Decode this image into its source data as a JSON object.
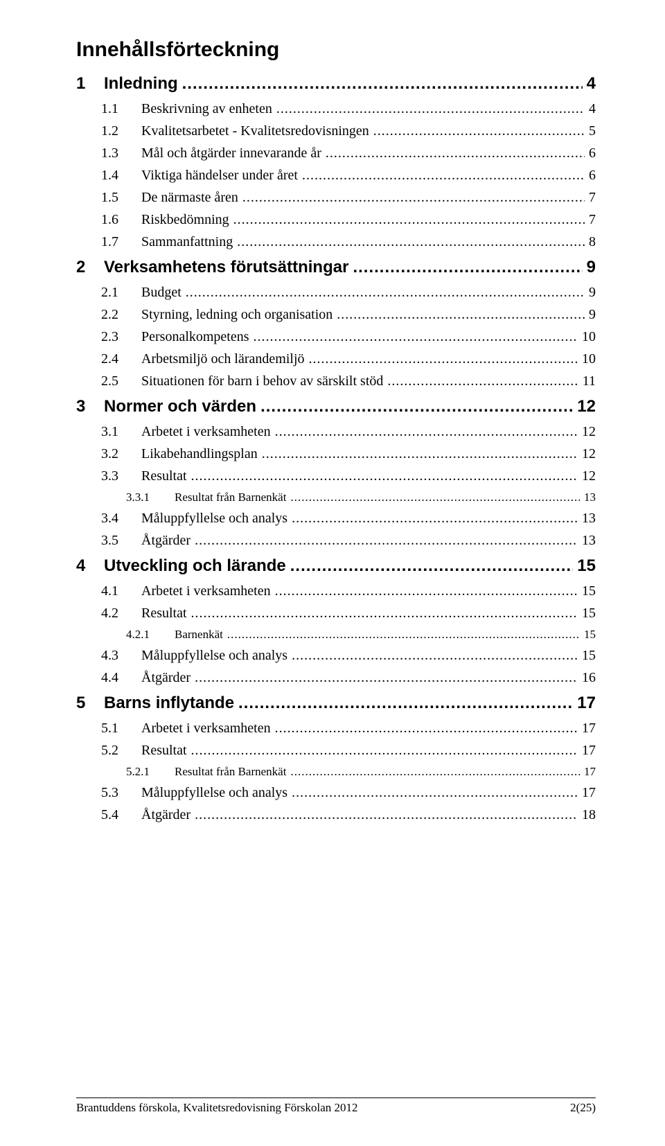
{
  "title": "Innehållsförteckning",
  "entries": [
    {
      "level": 1,
      "num": "1",
      "label": "Inledning",
      "page": "4"
    },
    {
      "level": 2,
      "num": "1.1",
      "label": "Beskrivning av enheten",
      "page": "4"
    },
    {
      "level": 2,
      "num": "1.2",
      "label": "Kvalitetsarbetet - Kvalitetsredovisningen",
      "page": "5"
    },
    {
      "level": 2,
      "num": "1.3",
      "label": "Mål och åtgärder innevarande år",
      "page": "6"
    },
    {
      "level": 2,
      "num": "1.4",
      "label": "Viktiga händelser under året",
      "page": "6"
    },
    {
      "level": 2,
      "num": "1.5",
      "label": "De närmaste åren",
      "page": "7"
    },
    {
      "level": 2,
      "num": "1.6",
      "label": "Riskbedömning",
      "page": "7"
    },
    {
      "level": 2,
      "num": "1.7",
      "label": "Sammanfattning",
      "page": "8"
    },
    {
      "level": 1,
      "num": "2",
      "label": "Verksamhetens förutsättningar",
      "page": "9"
    },
    {
      "level": 2,
      "num": "2.1",
      "label": "Budget",
      "page": "9"
    },
    {
      "level": 2,
      "num": "2.2",
      "label": "Styrning, ledning och organisation",
      "page": "9"
    },
    {
      "level": 2,
      "num": "2.3",
      "label": "Personalkompetens",
      "page": "10"
    },
    {
      "level": 2,
      "num": "2.4",
      "label": "Arbetsmiljö och lärandemiljö",
      "page": "10"
    },
    {
      "level": 2,
      "num": "2.5",
      "label": "Situationen för barn i behov av särskilt stöd",
      "page": "11"
    },
    {
      "level": 1,
      "num": "3",
      "label": "Normer och värden",
      "page": "12"
    },
    {
      "level": 2,
      "num": "3.1",
      "label": "Arbetet i verksamheten",
      "page": "12"
    },
    {
      "level": 2,
      "num": "3.2",
      "label": "Likabehandlingsplan",
      "page": "12"
    },
    {
      "level": 2,
      "num": "3.3",
      "label": "Resultat",
      "page": "12"
    },
    {
      "level": 3,
      "num": "3.3.1",
      "label": "Resultat från Barnenkät",
      "page": "13"
    },
    {
      "level": 2,
      "num": "3.4",
      "label": "Måluppfyllelse och analys",
      "page": "13"
    },
    {
      "level": 2,
      "num": "3.5",
      "label": "Åtgärder",
      "page": "13"
    },
    {
      "level": 1,
      "num": "4",
      "label": "Utveckling och lärande",
      "page": "15"
    },
    {
      "level": 2,
      "num": "4.1",
      "label": "Arbetet i verksamheten",
      "page": "15"
    },
    {
      "level": 2,
      "num": "4.2",
      "label": "Resultat",
      "page": "15"
    },
    {
      "level": 3,
      "num": "4.2.1",
      "label": "Barnenkät",
      "page": "15"
    },
    {
      "level": 2,
      "num": "4.3",
      "label": "Måluppfyllelse och analys",
      "page": "15"
    },
    {
      "level": 2,
      "num": "4.4",
      "label": "Åtgärder",
      "page": "16"
    },
    {
      "level": 1,
      "num": "5",
      "label": "Barns inflytande",
      "page": "17"
    },
    {
      "level": 2,
      "num": "5.1",
      "label": "Arbetet i verksamheten",
      "page": "17"
    },
    {
      "level": 2,
      "num": "5.2",
      "label": "Resultat",
      "page": "17"
    },
    {
      "level": 3,
      "num": "5.2.1",
      "label": "Resultat från Barnenkät",
      "page": "17"
    },
    {
      "level": 2,
      "num": "5.3",
      "label": "Måluppfyllelse och analys",
      "page": "17"
    },
    {
      "level": 2,
      "num": "5.4",
      "label": "Åtgärder",
      "page": "18"
    }
  ],
  "footer": {
    "left": "Brantuddens förskola, Kvalitetsredovisning Förskolan 2012",
    "right": "2(25)"
  }
}
